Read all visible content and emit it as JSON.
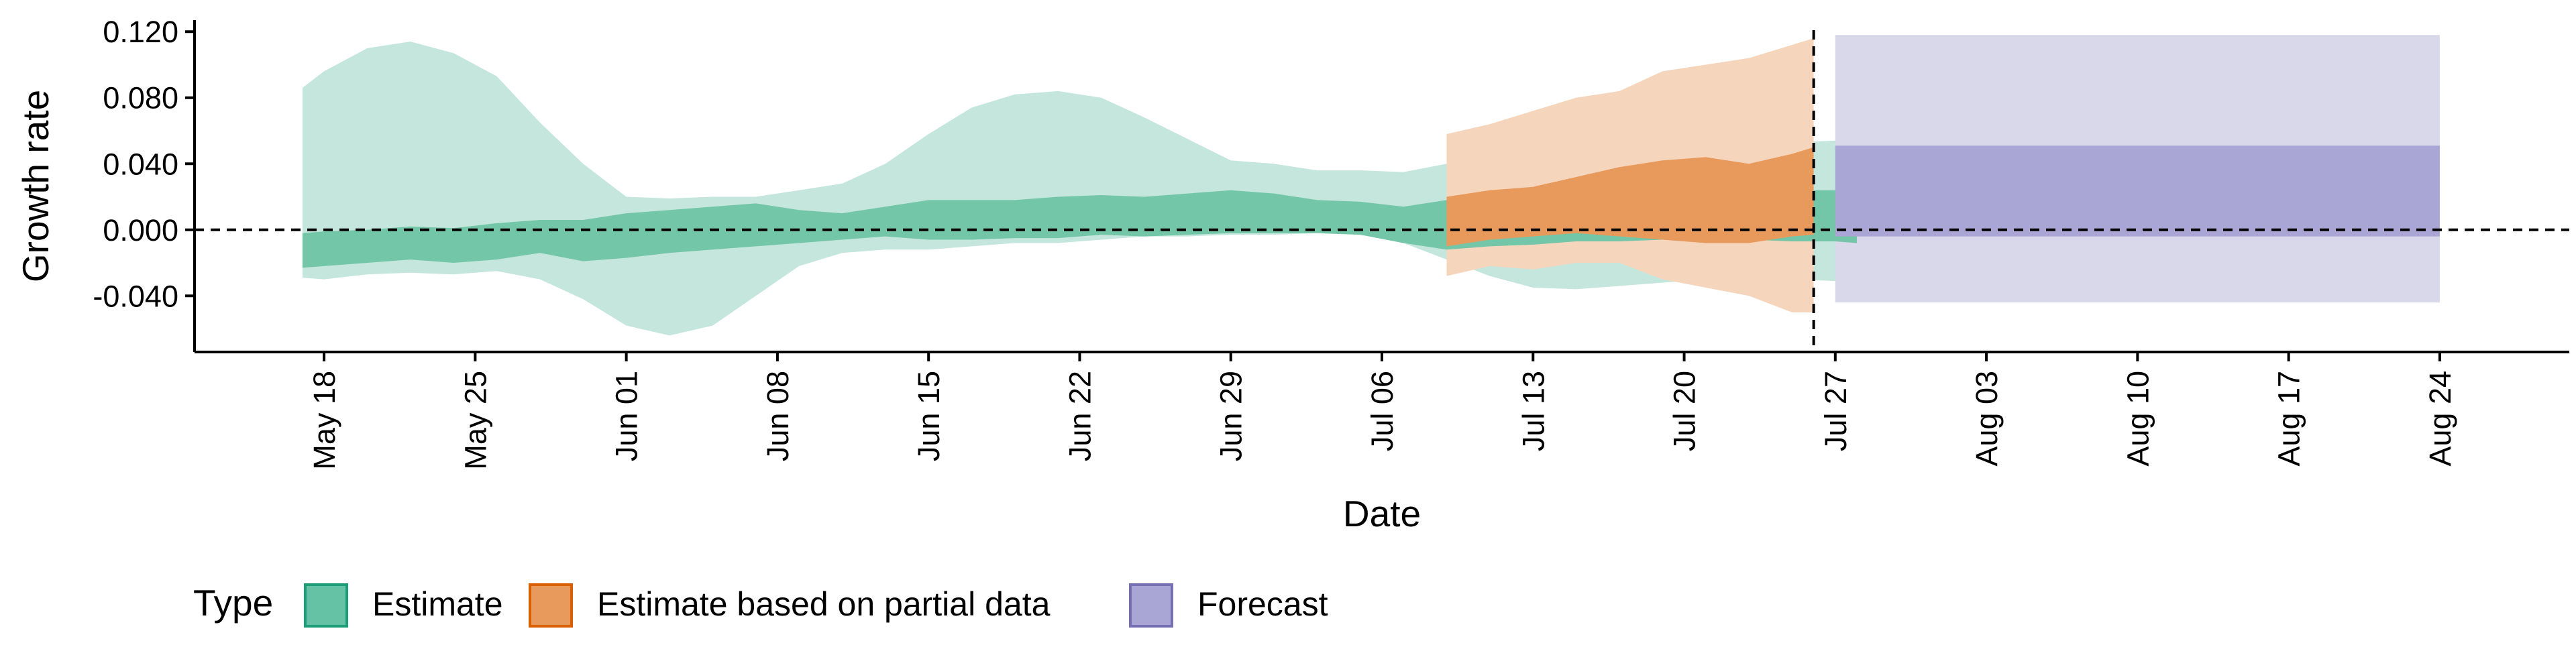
{
  "chart_data": {
    "type": "area",
    "title": "",
    "xlabel": "Date",
    "ylabel": "Growth rate",
    "x_tick_labels": [
      "May 18",
      "May 25",
      "Jun 01",
      "Jun 08",
      "Jun 15",
      "Jun 22",
      "Jun 29",
      "Jul 06",
      "Jul 13",
      "Jul 20",
      "Jul 27",
      "Aug 03",
      "Aug 10",
      "Aug 17",
      "Aug 24"
    ],
    "y_tick_labels": [
      "-0.040",
      "0.000",
      "0.040",
      "0.080",
      "0.120"
    ],
    "y_ticks": [
      -0.04,
      0.0,
      0.04,
      0.08,
      0.12
    ],
    "ylim": [
      -0.074,
      0.127
    ],
    "xlim": [
      -6,
      104
    ],
    "x_origin_date": "2020-05-18",
    "reference_lines": {
      "horizontal_y": 0.0,
      "vertical_x": 69
    },
    "grid": false,
    "legend": {
      "title": "Type",
      "position": "bottom-left",
      "items": [
        {
          "label": "Estimate",
          "fill": "#66c2a5",
          "stroke": "#1b9e77"
        },
        {
          "label": "Estimate based on partial data",
          "fill": "#e89a5c",
          "stroke": "#d95f02"
        },
        {
          "label": "Forecast",
          "fill": "#a9a5d4",
          "stroke": "#7570b3"
        }
      ]
    },
    "series": [
      {
        "name": "Estimate",
        "outer_fill": "#c5e6dc",
        "inner_fill": "#74c6a8",
        "x": [
          -1,
          0,
          2,
          4,
          6,
          8,
          10,
          12,
          14,
          16,
          18,
          20,
          22,
          24,
          26,
          28,
          30,
          32,
          34,
          36,
          38,
          40,
          42,
          44,
          46,
          48,
          50,
          52,
          54,
          56,
          58,
          60,
          62,
          64,
          66,
          68,
          70,
          71
        ],
        "outer_lo": [
          -0.029,
          -0.03,
          -0.027,
          -0.026,
          -0.027,
          -0.025,
          -0.03,
          -0.042,
          -0.058,
          -0.064,
          -0.058,
          -0.04,
          -0.022,
          -0.014,
          -0.012,
          -0.012,
          -0.01,
          -0.008,
          -0.008,
          -0.006,
          -0.004,
          -0.004,
          -0.003,
          -0.003,
          -0.002,
          -0.003,
          -0.008,
          -0.018,
          -0.028,
          -0.035,
          -0.036,
          -0.034,
          -0.032,
          -0.03,
          -0.029,
          -0.03,
          -0.031,
          -0.032
        ],
        "outer_hi": [
          0.086,
          0.096,
          0.11,
          0.114,
          0.107,
          0.093,
          0.065,
          0.04,
          0.02,
          0.019,
          0.02,
          0.02,
          0.024,
          0.028,
          0.04,
          0.058,
          0.074,
          0.082,
          0.084,
          0.08,
          0.068,
          0.055,
          0.042,
          0.04,
          0.036,
          0.036,
          0.035,
          0.04,
          0.041,
          0.04,
          0.043,
          0.045,
          0.048,
          0.05,
          0.051,
          0.053,
          0.054,
          0.054
        ],
        "inner_lo": [
          -0.023,
          -0.022,
          -0.02,
          -0.018,
          -0.02,
          -0.018,
          -0.014,
          -0.019,
          -0.017,
          -0.014,
          -0.012,
          -0.01,
          -0.008,
          -0.006,
          -0.004,
          -0.006,
          -0.006,
          -0.005,
          -0.005,
          -0.003,
          -0.004,
          -0.003,
          -0.002,
          -0.002,
          -0.002,
          -0.003,
          -0.008,
          -0.012,
          -0.01,
          -0.009,
          -0.007,
          -0.007,
          -0.006,
          -0.006,
          -0.006,
          -0.007,
          -0.007,
          -0.008
        ],
        "inner_hi": [
          -0.002,
          -0.001,
          0.0,
          0.002,
          0.001,
          0.004,
          0.006,
          0.006,
          0.01,
          0.012,
          0.014,
          0.016,
          0.012,
          0.01,
          0.014,
          0.018,
          0.018,
          0.018,
          0.02,
          0.021,
          0.02,
          0.022,
          0.024,
          0.022,
          0.018,
          0.017,
          0.014,
          0.018,
          0.02,
          0.022,
          0.022,
          0.023,
          0.023,
          0.024,
          0.024,
          0.024,
          0.024,
          0.024
        ]
      },
      {
        "name": "Estimate based on partial data",
        "outer_fill": "#f6d5bd",
        "inner_fill": "#e89a5c",
        "x": [
          52,
          54,
          56,
          58,
          60,
          62,
          64,
          66,
          68,
          69
        ],
        "outer_lo": [
          -0.028,
          -0.022,
          -0.024,
          -0.02,
          -0.02,
          -0.03,
          -0.035,
          -0.04,
          -0.05,
          -0.05
        ],
        "outer_hi": [
          0.058,
          0.064,
          0.072,
          0.08,
          0.084,
          0.096,
          0.1,
          0.104,
          0.112,
          0.116
        ],
        "inner_lo": [
          -0.01,
          -0.006,
          -0.004,
          -0.002,
          -0.004,
          -0.006,
          -0.008,
          -0.008,
          -0.004,
          -0.003
        ],
        "inner_hi": [
          0.02,
          0.024,
          0.026,
          0.032,
          0.038,
          0.042,
          0.044,
          0.04,
          0.046,
          0.05
        ]
      },
      {
        "name": "Forecast",
        "outer_fill": "#d9d7ea",
        "inner_fill": "#a9a5d4",
        "x": [
          70,
          98
        ],
        "outer_lo": [
          -0.044,
          -0.044
        ],
        "outer_hi": [
          0.118,
          0.118
        ],
        "inner_lo": [
          -0.004,
          -0.004
        ],
        "inner_hi": [
          0.051,
          0.051
        ]
      }
    ]
  }
}
